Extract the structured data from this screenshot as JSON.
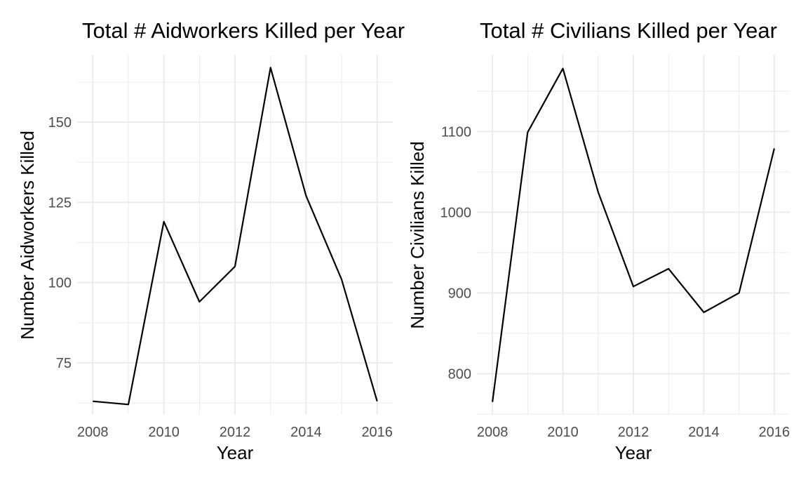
{
  "chart_data": [
    {
      "type": "line",
      "title": "Total # Aidworkers Killed per Year",
      "xlabel": "Year",
      "ylabel": "Number Aidworkers Killed",
      "x": [
        2008,
        2009,
        2010,
        2011,
        2012,
        2013,
        2014,
        2015,
        2016
      ],
      "series": [
        {
          "values": [
            63,
            62,
            119,
            94,
            105,
            167,
            127,
            101,
            63
          ]
        }
      ],
      "xlim": [
        2008,
        2016
      ],
      "ylim": [
        59,
        171
      ],
      "xticks": [
        2008,
        2010,
        2012,
        2014,
        2016
      ],
      "yticks": [
        75,
        100,
        125,
        150
      ],
      "grid": true,
      "line_color": "#000000"
    },
    {
      "type": "line",
      "title": "Total # Civilians Killed per Year",
      "xlabel": "Year",
      "ylabel": "Number Civilians Killed",
      "x": [
        2008,
        2009,
        2010,
        2011,
        2012,
        2013,
        2014,
        2015,
        2016
      ],
      "series": [
        {
          "values": [
            765,
            1099,
            1178,
            1025,
            908,
            930,
            876,
            900,
            1079
          ]
        }
      ],
      "xlim": [
        2008,
        2016
      ],
      "ylim": [
        750,
        1195
      ],
      "xticks": [
        2008,
        2010,
        2012,
        2014,
        2016
      ],
      "yticks": [
        800,
        900,
        1000,
        1100
      ],
      "grid": true,
      "line_color": "#000000"
    }
  ]
}
